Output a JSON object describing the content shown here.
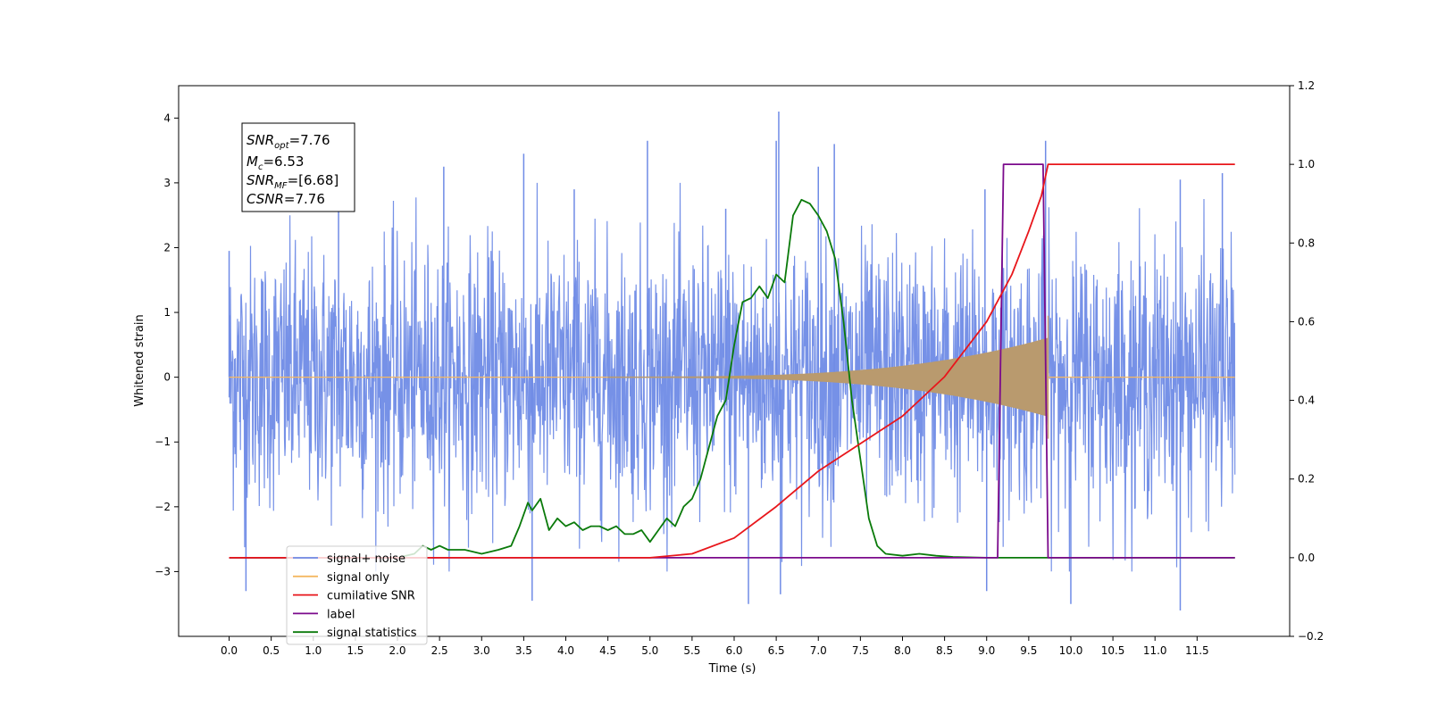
{
  "chart_data": {
    "type": "line",
    "title": "",
    "xlabel": "Time (s)",
    "ylabel": "Whitened strain",
    "y2label": "",
    "xlim": [
      -0.6,
      12.6
    ],
    "ylim": [
      -4,
      4.5
    ],
    "y2lim": [
      -0.2,
      1.2
    ],
    "x_ticks": [
      "0.0",
      "0.5",
      "1.0",
      "1.5",
      "2.0",
      "2.5",
      "3.0",
      "3.5",
      "4.0",
      "4.5",
      "5.0",
      "5.5",
      "6.0",
      "6.5",
      "7.0",
      "7.5",
      "8.0",
      "8.5",
      "9.0",
      "9.5",
      "10.0",
      "10.5",
      "11.0",
      "11.5"
    ],
    "y_ticks": [
      "4",
      "3",
      "2",
      "1",
      "0",
      "−1",
      "−2",
      "−3"
    ],
    "y2_ticks": [
      "1.2",
      "1.0",
      "0.8",
      "0.6",
      "0.4",
      "0.2",
      "0.0",
      "−0.2"
    ],
    "grid": false,
    "legend_position": "lower-left",
    "info_box": {
      "snr_opt": "7.76",
      "mc": "6.53",
      "snr_mf": "[6.68]",
      "csnr": "7.76"
    },
    "series": [
      {
        "name": "signal+ noise",
        "color": "#6f8be6",
        "axis": "left",
        "description_range": [
          -2.7,
          2.7
        ],
        "peaks": [
          {
            "x": 6.53,
            "y": 4.1
          },
          {
            "x": 6.5,
            "y": 3.65
          },
          {
            "x": 4.97,
            "y": 3.65
          },
          {
            "x": 7.19,
            "y": 3.6
          },
          {
            "x": 9.7,
            "y": 3.65
          },
          {
            "x": 3.5,
            "y": 3.45
          },
          {
            "x": 7.0,
            "y": 3.25
          },
          {
            "x": 11.8,
            "y": 3.15
          },
          {
            "x": 2.55,
            "y": 3.25
          },
          {
            "x": 11.3,
            "y": 3.05
          },
          {
            "x": 1.3,
            "y": 3.0
          },
          {
            "x": 0.0,
            "y": 1.95
          },
          {
            "x": 5.9,
            "y": 2.6
          },
          {
            "x": 4.1,
            "y": 2.9
          },
          {
            "x": 8.98,
            "y": 2.9
          },
          {
            "x": 11.3,
            "y": -3.6
          },
          {
            "x": 6.17,
            "y": -3.5
          },
          {
            "x": 3.6,
            "y": -3.45
          },
          {
            "x": 10.0,
            "y": -3.5
          },
          {
            "x": 6.55,
            "y": -3.35
          },
          {
            "x": 0.2,
            "y": -3.3
          },
          {
            "x": 9.0,
            "y": -3.3
          }
        ]
      },
      {
        "name": "signal only",
        "color": "#f4b862",
        "axis": "left",
        "chirp": {
          "start": 4.5,
          "end": 9.73,
          "max_amp": 0.6
        }
      },
      {
        "name": "cumilative SNR",
        "color": "#e8161b",
        "axis": "right",
        "x": [
          0,
          5.0,
          5.5,
          6.0,
          6.5,
          7.0,
          7.5,
          8.0,
          8.5,
          9.0,
          9.3,
          9.5,
          9.65,
          9.73,
          11.95
        ],
        "values": [
          0,
          0,
          0.01,
          0.05,
          0.13,
          0.22,
          0.29,
          0.36,
          0.46,
          0.6,
          0.72,
          0.83,
          0.92,
          1.0,
          1.0
        ]
      },
      {
        "name": "label",
        "color": "#7b0a8c",
        "axis": "right",
        "x": [
          0,
          9.13,
          9.2,
          9.67,
          9.73,
          11.95
        ],
        "values": [
          0,
          0,
          1.0,
          1.0,
          0,
          0
        ]
      },
      {
        "name": "signal statistics",
        "color": "#0a7a0a",
        "axis": "right",
        "x": [
          0,
          2.0,
          2.2,
          2.3,
          2.4,
          2.5,
          2.6,
          2.8,
          3.0,
          3.2,
          3.35,
          3.45,
          3.55,
          3.6,
          3.7,
          3.8,
          3.9,
          4.0,
          4.1,
          4.2,
          4.3,
          4.4,
          4.5,
          4.6,
          4.7,
          4.8,
          4.9,
          5.0,
          5.1,
          5.2,
          5.3,
          5.4,
          5.5,
          5.6,
          5.7,
          5.8,
          5.9,
          6.0,
          6.1,
          6.2,
          6.3,
          6.4,
          6.5,
          6.6,
          6.7,
          6.8,
          6.9,
          7.0,
          7.1,
          7.2,
          7.3,
          7.4,
          7.5,
          7.6,
          7.7,
          7.8,
          8.0,
          8.2,
          8.4,
          8.6,
          9.0,
          11.95
        ],
        "values": [
          0,
          0,
          0.01,
          0.03,
          0.02,
          0.03,
          0.02,
          0.02,
          0.01,
          0.02,
          0.03,
          0.08,
          0.14,
          0.12,
          0.15,
          0.07,
          0.1,
          0.08,
          0.09,
          0.07,
          0.08,
          0.08,
          0.07,
          0.08,
          0.06,
          0.06,
          0.07,
          0.04,
          0.07,
          0.1,
          0.08,
          0.13,
          0.15,
          0.2,
          0.28,
          0.36,
          0.4,
          0.54,
          0.65,
          0.66,
          0.69,
          0.66,
          0.72,
          0.7,
          0.87,
          0.91,
          0.9,
          0.87,
          0.83,
          0.76,
          0.6,
          0.4,
          0.25,
          0.1,
          0.03,
          0.01,
          0.005,
          0.01,
          0.005,
          0.002,
          0.0,
          0.0
        ]
      }
    ],
    "legend": [
      {
        "label": "signal+ noise",
        "color": "#6f8be6"
      },
      {
        "label": "signal only",
        "color": "#f4b862"
      },
      {
        "label": "cumilative SNR",
        "color": "#e8161b"
      },
      {
        "label": "label",
        "color": "#7b0a8c"
      },
      {
        "label": "signal statistics",
        "color": "#0a7a0a"
      }
    ]
  }
}
